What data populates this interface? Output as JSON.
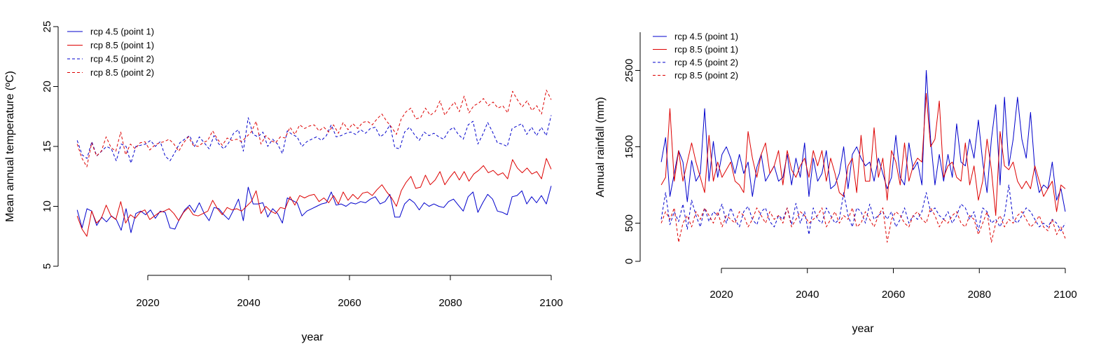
{
  "chart_data": [
    {
      "type": "line",
      "title": "",
      "xlabel": "year",
      "ylabel": "Mean annual temperature (ºC)",
      "xlim": [
        2006,
        2100
      ],
      "ylim": [
        5,
        25
      ],
      "xticks": [
        "2020",
        "2040",
        "2060",
        "2080",
        "2100"
      ],
      "yticks": [
        "5",
        "10",
        "15",
        "20",
        "25"
      ],
      "x_start": 2006,
      "legend": "top-left",
      "series": [
        {
          "name": "rcp 4.5 (point 1)",
          "color": "#0000cc",
          "dash": "solid",
          "values": [
            9.7,
            8.2,
            9.8,
            9.6,
            8.4,
            9.1,
            8.7,
            9.2,
            8.9,
            8.0,
            9.8,
            7.8,
            9.4,
            9.6,
            9.3,
            9.7,
            9.0,
            9.6,
            9.5,
            8.2,
            8.1,
            9.0,
            9.7,
            10.1,
            9.5,
            10.3,
            9.4,
            8.8,
            9.9,
            9.8,
            9.3,
            8.9,
            9.7,
            10.6,
            8.8,
            11.6,
            10.2,
            10.2,
            10.3,
            9.1,
            9.8,
            9.4,
            8.6,
            10.7,
            10.5,
            10.3,
            9.2,
            9.6,
            9.8,
            10.0,
            10.2,
            10.3,
            11.2,
            10.1,
            10.2,
            10.0,
            10.3,
            10.2,
            10.4,
            10.3,
            10.6,
            10.8,
            10.2,
            10.4,
            11.0,
            9.1,
            9.1,
            10.2,
            10.6,
            10.3,
            9.7,
            10.3,
            10.0,
            10.2,
            10.0,
            9.9,
            10.4,
            10.6,
            10.1,
            9.6,
            10.8,
            11.2,
            9.5,
            10.3,
            11.0,
            10.6,
            9.6,
            9.5,
            9.3,
            10.8,
            10.9,
            11.3,
            10.2,
            10.8,
            10.3,
            10.9,
            10.2,
            11.7
          ]
        },
        {
          "name": "rcp 8.5 (point 1)",
          "color": "#dd0000",
          "dash": "solid",
          "values": [
            9.2,
            8.1,
            7.5,
            9.6,
            8.6,
            9.0,
            10.1,
            9.2,
            8.9,
            10.4,
            8.6,
            9.3,
            9.0,
            9.5,
            9.7,
            8.9,
            9.2,
            9.5,
            9.6,
            9.8,
            9.4,
            8.8,
            9.5,
            9.9,
            9.3,
            9.2,
            9.4,
            9.6,
            10.5,
            9.8,
            9.3,
            9.9,
            9.7,
            9.8,
            9.6,
            10.0,
            10.4,
            11.3,
            9.4,
            10.0,
            9.6,
            9.4,
            9.9,
            9.8,
            10.8,
            10.1,
            10.9,
            10.7,
            10.9,
            11.0,
            10.4,
            10.7,
            10.3,
            10.9,
            10.2,
            11.2,
            10.5,
            11.0,
            10.6,
            11.1,
            11.2,
            10.9,
            11.4,
            11.8,
            11.2,
            10.7,
            10.0,
            11.3,
            12.0,
            12.5,
            11.5,
            11.6,
            12.6,
            11.8,
            12.2,
            12.9,
            11.8,
            12.4,
            12.9,
            12.2,
            12.9,
            12.1,
            12.7,
            13.0,
            13.4,
            12.8,
            13.0,
            12.6,
            12.8,
            12.3,
            13.9,
            13.2,
            12.8,
            13.2,
            12.7,
            12.9,
            12.3,
            14.0,
            13.1
          ]
        },
        {
          "name": "rcp 4.5 (point 2)",
          "color": "#0000cc",
          "dash": "dashed",
          "values": [
            15.5,
            14.3,
            14.0,
            15.4,
            14.2,
            14.6,
            15.0,
            14.8,
            13.8,
            15.2,
            15.0,
            13.6,
            15.0,
            15.1,
            15.2,
            15.5,
            15.0,
            15.4,
            14.2,
            13.8,
            14.5,
            15.3,
            15.6,
            15.9,
            15.0,
            15.8,
            15.3,
            14.8,
            15.9,
            15.2,
            14.8,
            15.3,
            16.1,
            16.4,
            14.6,
            17.4,
            16.0,
            15.8,
            16.2,
            15.0,
            15.6,
            15.2,
            14.4,
            16.3,
            16.0,
            15.8,
            15.0,
            15.4,
            15.6,
            15.8,
            15.5,
            15.9,
            16.8,
            15.8,
            15.9,
            16.1,
            16.2,
            16.0,
            16.4,
            16.1,
            16.5,
            16.6,
            15.8,
            16.1,
            16.8,
            14.9,
            14.8,
            16.2,
            16.6,
            16.0,
            15.5,
            16.2,
            15.9,
            16.1,
            15.8,
            15.6,
            16.3,
            16.6,
            16.0,
            15.6,
            16.8,
            17.1,
            15.2,
            16.0,
            17.0,
            16.2,
            15.3,
            15.2,
            15.0,
            16.5,
            16.7,
            16.9,
            16.0,
            16.6,
            15.9,
            16.6,
            15.9,
            17.6
          ]
        },
        {
          "name": "rcp 8.5 (point 2)",
          "color": "#dd0000",
          "dash": "dashed",
          "values": [
            15.2,
            14.0,
            13.3,
            15.3,
            14.2,
            14.6,
            15.8,
            14.9,
            14.6,
            16.2,
            14.3,
            15.2,
            14.8,
            15.3,
            15.4,
            14.7,
            15.1,
            15.3,
            15.4,
            15.6,
            15.2,
            14.6,
            15.3,
            15.8,
            15.1,
            15.0,
            15.3,
            15.5,
            16.3,
            15.6,
            15.1,
            15.7,
            15.5,
            15.6,
            15.4,
            15.8,
            16.2,
            17.1,
            15.2,
            15.9,
            15.5,
            15.3,
            15.8,
            15.7,
            16.6,
            16.0,
            16.8,
            16.5,
            16.7,
            16.8,
            16.3,
            16.6,
            16.2,
            16.8,
            16.1,
            17.0,
            16.4,
            16.9,
            16.5,
            17.0,
            17.1,
            16.8,
            17.3,
            17.7,
            17.1,
            16.6,
            16.0,
            17.3,
            17.9,
            18.2,
            17.3,
            17.4,
            18.2,
            17.6,
            17.9,
            18.8,
            17.6,
            18.2,
            18.7,
            17.9,
            19.2,
            17.8,
            18.4,
            18.6,
            19.0,
            18.4,
            18.7,
            18.2,
            18.4,
            17.8,
            19.6,
            18.9,
            18.3,
            18.8,
            18.0,
            18.4,
            17.7,
            19.7,
            18.9
          ]
        }
      ]
    },
    {
      "type": "line",
      "title": "",
      "xlabel": "year",
      "ylabel": "Annual rainfall (mm)",
      "xlim": [
        2006,
        2100
      ],
      "ylim": [
        0,
        3000
      ],
      "xticks": [
        "2020",
        "2040",
        "2060",
        "2080",
        "2100"
      ],
      "yticks": [
        "0",
        "500",
        "1500",
        "2500"
      ],
      "x_start": 2006,
      "legend": "top-left",
      "series": [
        {
          "name": "rcp 4.5 (point 1)",
          "color": "#0000cc",
          "dash": "solid",
          "values": [
            1300,
            1620,
            850,
            1150,
            1450,
            1300,
            780,
            1320,
            1050,
            1150,
            2000,
            1050,
            1570,
            1100,
            1400,
            1500,
            1350,
            1150,
            1400,
            1150,
            1300,
            850,
            1230,
            1400,
            1050,
            1150,
            1250,
            1050,
            1100,
            1400,
            1000,
            1350,
            1100,
            1550,
            850,
            1350,
            1050,
            1150,
            1450,
            950,
            1000,
            1150,
            1500,
            950,
            1400,
            1500,
            1350,
            1250,
            1300,
            1050,
            1350,
            1150,
            950,
            1100,
            1650,
            1100,
            1000,
            1550,
            1200,
            1300,
            1000,
            2500,
            1600,
            1000,
            1400,
            1050,
            1400,
            1100,
            1800,
            1300,
            1250,
            1600,
            1350,
            1850,
            1300,
            900,
            1600,
            2050,
            1000,
            2150,
            1250,
            1600,
            2150,
            1600,
            1350,
            1950,
            1200,
            900,
            1000,
            950,
            1300,
            800,
            950,
            650
          ],
          "series_x_note": ""
        },
        {
          "name": "rcp 8.5 (point 1)",
          "color": "#dd0000",
          "dash": "solid",
          "values": [
            1000,
            1100,
            2000,
            1050,
            1450,
            1050,
            1300,
            1550,
            1300,
            1100,
            900,
            1650,
            1050,
            1300,
            1100,
            1200,
            1300,
            1050,
            1000,
            900,
            1700,
            1350,
            1100,
            1400,
            1550,
            1150,
            1250,
            1450,
            1000,
            1450,
            1200,
            1100,
            1250,
            1350,
            1100,
            1450,
            1250,
            1450,
            1050,
            1350,
            1150,
            900,
            850,
            1250,
            1350,
            900,
            1650,
            1050,
            1050,
            1750,
            1100,
            1350,
            800,
            1450,
            1300,
            1000,
            1550,
            1050,
            1250,
            1350,
            1300,
            2200,
            1500,
            1600,
            2100,
            1100,
            1250,
            1300,
            1100,
            1050,
            1550,
            1000,
            1250,
            800,
            1050,
            1600,
            1200,
            600,
            1700,
            1250,
            1200,
            1300,
            1050,
            950,
            1050,
            950,
            1250,
            1050,
            850,
            950,
            1050,
            650,
            1000,
            950
          ],
          "series_x_note": ""
        },
        {
          "name": "rcp 4.5 (point 2)",
          "color": "#0000cc",
          "dash": "dashed",
          "values": [
            550,
            900,
            480,
            650,
            520,
            750,
            420,
            800,
            600,
            450,
            700,
            520,
            650,
            600,
            750,
            500,
            700,
            550,
            450,
            650,
            720,
            550,
            480,
            650,
            700,
            520,
            450,
            600,
            550,
            700,
            480,
            760,
            500,
            650,
            350,
            700,
            550,
            500,
            700,
            600,
            500,
            550,
            900,
            600,
            450,
            700,
            650,
            500,
            750,
            550,
            600,
            650,
            550,
            650,
            450,
            550,
            700,
            500,
            600,
            550,
            650,
            900,
            650,
            700,
            600,
            550,
            650,
            500,
            600,
            750,
            700,
            550,
            650,
            400,
            700,
            650,
            500,
            550,
            450,
            600,
            1000,
            550,
            500,
            600,
            700,
            650,
            550,
            450,
            500,
            450,
            550,
            500,
            400,
            500
          ],
          "series_x_note": ""
        },
        {
          "name": "rcp 8.5 (point 2)",
          "color": "#dd0000",
          "dash": "dashed",
          "values": [
            500,
            650,
            550,
            700,
            250,
            500,
            600,
            450,
            650,
            550,
            700,
            600,
            500,
            650,
            450,
            600,
            550,
            500,
            650,
            600,
            450,
            550,
            700,
            600,
            500,
            650,
            550,
            600,
            500,
            700,
            450,
            550,
            650,
            600,
            500,
            550,
            600,
            700,
            450,
            550,
            650,
            500,
            600,
            550,
            700,
            450,
            500,
            650,
            550,
            450,
            600,
            700,
            250,
            550,
            650,
            600,
            500,
            450,
            600,
            650,
            550,
            500,
            700,
            600,
            450,
            550,
            500,
            600,
            650,
            500,
            450,
            600,
            550,
            350,
            500,
            650,
            250,
            500,
            600,
            450,
            550,
            500,
            600,
            650,
            550,
            450,
            500,
            600,
            450,
            400,
            550,
            350,
            450,
            300
          ],
          "series_x_note": ""
        }
      ]
    }
  ]
}
